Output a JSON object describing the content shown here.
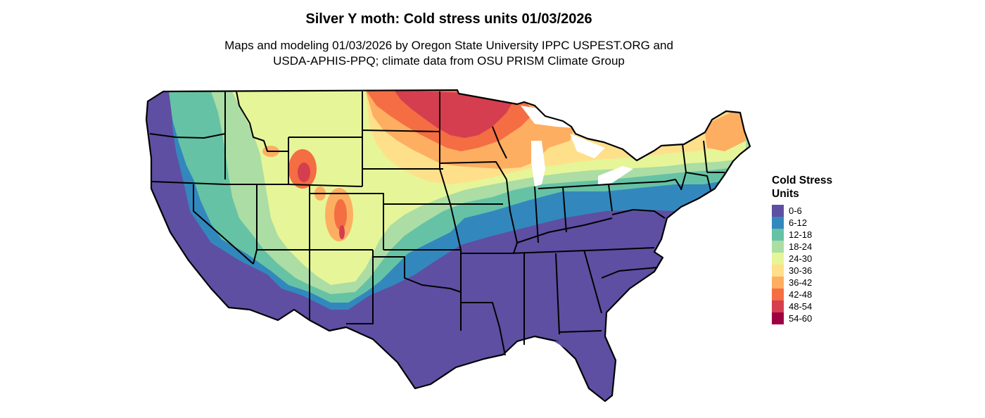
{
  "header": {
    "title": "Silver Y moth: Cold stress units 01/03/2026",
    "subtitle_line1": "Maps and modeling 01/03/2026 by Oregon State University IPPC USPEST.ORG and",
    "subtitle_line2": "USDA-APHIS-PPQ; climate data from OSU PRISM Climate Group"
  },
  "legend": {
    "title_line1": "Cold Stress",
    "title_line2": "Units",
    "items": [
      {
        "label": "0-6",
        "color": "#5E4FA2"
      },
      {
        "label": "6-12",
        "color": "#3288BD"
      },
      {
        "label": "12-18",
        "color": "#66C2A5"
      },
      {
        "label": "18-24",
        "color": "#ABDDA4"
      },
      {
        "label": "24-30",
        "color": "#E6F598"
      },
      {
        "label": "30-36",
        "color": "#FEE08B"
      },
      {
        "label": "36-42",
        "color": "#FDAE61"
      },
      {
        "label": "42-48",
        "color": "#F46D43"
      },
      {
        "label": "48-54",
        "color": "#D53E4F"
      },
      {
        "label": "54-60",
        "color": "#9E0142"
      }
    ]
  },
  "map": {
    "region": "Contiguous United States",
    "variable": "Cold stress units"
  }
}
